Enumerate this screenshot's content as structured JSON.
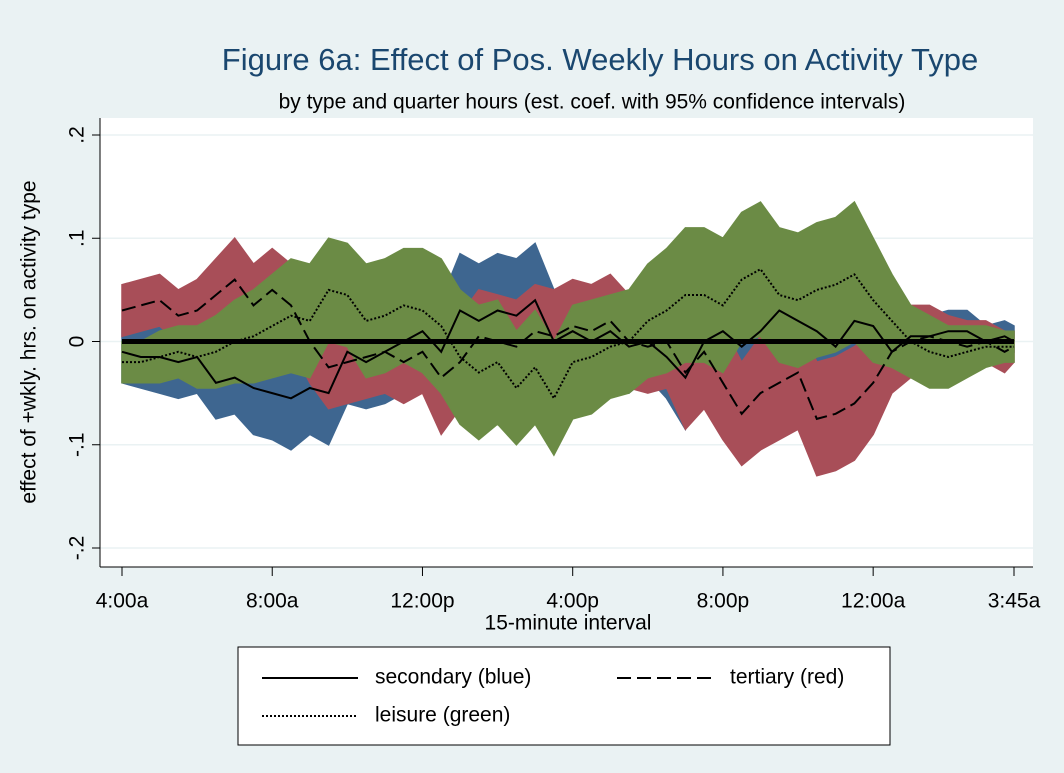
{
  "chart_data": {
    "type": "line",
    "title": "Figure 6a: Effect of Pos. Weekly Hours on Activity Type",
    "subtitle": "by type and quarter hours (est. coef. with 95% confidence intervals)",
    "x_label": "15-minute interval",
    "y_label": "effect of +wkly. hrs. on activity type",
    "x": [
      0,
      2,
      4,
      6,
      8,
      10,
      12,
      14,
      16,
      18,
      20,
      22,
      24,
      26,
      28,
      30,
      32,
      34,
      36,
      38,
      40,
      42,
      44,
      46,
      48,
      50,
      52,
      54,
      56,
      58,
      60,
      62,
      64,
      66,
      68,
      70,
      72,
      74,
      76,
      78,
      80,
      82,
      84,
      86,
      88,
      90,
      92,
      94,
      95
    ],
    "xlim": [
      0,
      95
    ],
    "xticks": [
      {
        "value": 0,
        "label": "4:00a"
      },
      {
        "value": 16,
        "label": "8:00a"
      },
      {
        "value": 32,
        "label": "12:00p"
      },
      {
        "value": 48,
        "label": "4:00p"
      },
      {
        "value": 64,
        "label": "8:00p"
      },
      {
        "value": 80,
        "label": "12:00a"
      },
      {
        "value": 95,
        "label": "3:45a"
      }
    ],
    "ylim": [
      -0.2,
      0.2
    ],
    "yticks": [
      {
        "value": -0.2,
        "label": "-.2"
      },
      {
        "value": -0.1,
        "label": "-.1"
      },
      0,
      {
        "value": 0.1,
        "label": ".1"
      },
      {
        "value": 0.2,
        "label": ".2"
      }
    ],
    "grid": true,
    "legend": "bottom",
    "series": [
      {
        "name": "secondary (blue)",
        "color": "#3e6690",
        "line_style": "solid",
        "values": [
          -0.01,
          -0.015,
          -0.015,
          -0.02,
          -0.015,
          -0.04,
          -0.035,
          -0.045,
          -0.05,
          -0.055,
          -0.045,
          -0.05,
          -0.01,
          -0.02,
          -0.01,
          0.0,
          0.01,
          -0.01,
          0.03,
          0.02,
          0.03,
          0.025,
          0.04,
          0.0,
          0.01,
          0.0,
          0.01,
          -0.005,
          0.0,
          -0.015,
          -0.035,
          0.0,
          0.01,
          -0.005,
          0.01,
          0.03,
          0.02,
          0.01,
          -0.005,
          0.02,
          0.015,
          -0.01,
          0.005,
          0.005,
          0.01,
          0.01,
          0.0,
          0.005,
          0.0
        ],
        "lower": [
          -0.04,
          -0.045,
          -0.05,
          -0.055,
          -0.05,
          -0.075,
          -0.07,
          -0.09,
          -0.095,
          -0.105,
          -0.09,
          -0.1,
          -0.06,
          -0.065,
          -0.06,
          -0.05,
          -0.04,
          -0.06,
          -0.025,
          -0.03,
          -0.02,
          -0.03,
          -0.01,
          -0.05,
          -0.035,
          -0.04,
          -0.03,
          -0.05,
          -0.035,
          -0.055,
          -0.085,
          -0.04,
          -0.025,
          -0.04,
          -0.025,
          -0.005,
          -0.015,
          -0.025,
          -0.04,
          -0.015,
          -0.015,
          -0.04,
          -0.015,
          -0.015,
          -0.01,
          -0.01,
          -0.015,
          -0.005,
          -0.01
        ],
        "upper": [
          0.02,
          0.015,
          0.015,
          0.015,
          0.02,
          0.0,
          0.0,
          0.0,
          -0.005,
          -0.01,
          0.0,
          0.0,
          0.04,
          0.025,
          0.04,
          0.05,
          0.06,
          0.04,
          0.085,
          0.075,
          0.085,
          0.08,
          0.095,
          0.05,
          0.055,
          0.04,
          0.05,
          0.04,
          0.035,
          0.025,
          0.01,
          0.04,
          0.045,
          0.03,
          0.045,
          0.065,
          0.055,
          0.045,
          0.03,
          0.055,
          0.045,
          0.02,
          0.025,
          0.025,
          0.03,
          0.03,
          0.015,
          0.02,
          0.015
        ]
      },
      {
        "name": "tertiary (red)",
        "color": "#a84e58",
        "line_style": "dash",
        "values": [
          0.03,
          0.035,
          0.04,
          0.025,
          0.03,
          0.045,
          0.06,
          0.035,
          0.05,
          0.035,
          0.0,
          -0.025,
          -0.02,
          -0.015,
          -0.01,
          -0.02,
          -0.01,
          -0.035,
          -0.02,
          0.005,
          0.0,
          -0.005,
          0.01,
          0.005,
          0.015,
          0.01,
          0.02,
          0.0,
          -0.005,
          0.0,
          -0.03,
          -0.01,
          -0.04,
          -0.07,
          -0.05,
          -0.04,
          -0.03,
          -0.075,
          -0.07,
          -0.06,
          -0.04,
          -0.01,
          0.0,
          0.005,
          0.0,
          -0.005,
          0.0,
          -0.01,
          -0.005
        ],
        "lower": [
          0.005,
          0.01,
          0.015,
          0.0,
          0.0,
          0.01,
          0.02,
          -0.005,
          0.01,
          -0.005,
          -0.04,
          -0.065,
          -0.06,
          -0.055,
          -0.05,
          -0.06,
          -0.05,
          -0.09,
          -0.065,
          -0.04,
          -0.045,
          -0.05,
          -0.035,
          -0.04,
          -0.03,
          -0.035,
          -0.025,
          -0.045,
          -0.05,
          -0.045,
          -0.085,
          -0.065,
          -0.095,
          -0.12,
          -0.105,
          -0.095,
          -0.085,
          -0.13,
          -0.125,
          -0.115,
          -0.09,
          -0.05,
          -0.035,
          -0.025,
          -0.025,
          -0.03,
          -0.02,
          -0.03,
          -0.02
        ],
        "upper": [
          0.055,
          0.06,
          0.065,
          0.05,
          0.06,
          0.08,
          0.1,
          0.075,
          0.09,
          0.075,
          0.04,
          0.015,
          0.02,
          0.025,
          0.03,
          0.02,
          0.03,
          0.02,
          0.025,
          0.05,
          0.045,
          0.04,
          0.055,
          0.05,
          0.06,
          0.055,
          0.065,
          0.045,
          0.04,
          0.045,
          0.025,
          0.045,
          0.015,
          -0.02,
          0.005,
          0.015,
          0.025,
          -0.02,
          -0.015,
          -0.005,
          0.01,
          0.03,
          0.035,
          0.035,
          0.025,
          0.02,
          0.02,
          0.01,
          0.01
        ]
      },
      {
        "name": "leisure (green)",
        "color": "#6b8b45",
        "line_style": "dot",
        "values": [
          -0.02,
          -0.02,
          -0.015,
          -0.01,
          -0.015,
          -0.01,
          0.0,
          0.005,
          0.015,
          0.025,
          0.02,
          0.05,
          0.045,
          0.02,
          0.025,
          0.035,
          0.03,
          0.015,
          -0.015,
          -0.03,
          -0.02,
          -0.045,
          -0.025,
          -0.055,
          -0.02,
          -0.015,
          -0.005,
          0.0,
          0.02,
          0.03,
          0.045,
          0.045,
          0.035,
          0.06,
          0.07,
          0.045,
          0.04,
          0.05,
          0.055,
          0.065,
          0.04,
          0.02,
          0.0,
          -0.01,
          -0.015,
          -0.01,
          -0.005,
          -0.005,
          -0.005
        ],
        "lower": [
          -0.04,
          -0.04,
          -0.04,
          -0.035,
          -0.045,
          -0.045,
          -0.04,
          -0.04,
          -0.035,
          -0.03,
          -0.035,
          0.0,
          -0.005,
          -0.035,
          -0.03,
          -0.02,
          -0.03,
          -0.05,
          -0.08,
          -0.095,
          -0.08,
          -0.1,
          -0.08,
          -0.11,
          -0.075,
          -0.07,
          -0.055,
          -0.05,
          -0.035,
          -0.03,
          -0.02,
          -0.02,
          -0.03,
          0.0,
          0.005,
          -0.02,
          -0.025,
          -0.015,
          -0.01,
          0.0,
          -0.02,
          -0.025,
          -0.035,
          -0.045,
          -0.045,
          -0.035,
          -0.025,
          -0.02,
          -0.02
        ],
        "upper": [
          0.0,
          0.0,
          0.01,
          0.015,
          0.015,
          0.025,
          0.04,
          0.05,
          0.065,
          0.08,
          0.075,
          0.1,
          0.095,
          0.075,
          0.08,
          0.09,
          0.09,
          0.08,
          0.05,
          0.035,
          0.04,
          0.01,
          0.03,
          0.0,
          0.035,
          0.04,
          0.045,
          0.05,
          0.075,
          0.09,
          0.11,
          0.11,
          0.1,
          0.125,
          0.135,
          0.11,
          0.105,
          0.115,
          0.12,
          0.135,
          0.1,
          0.065,
          0.035,
          0.025,
          0.015,
          0.015,
          0.015,
          0.01,
          0.01
        ]
      }
    ]
  }
}
